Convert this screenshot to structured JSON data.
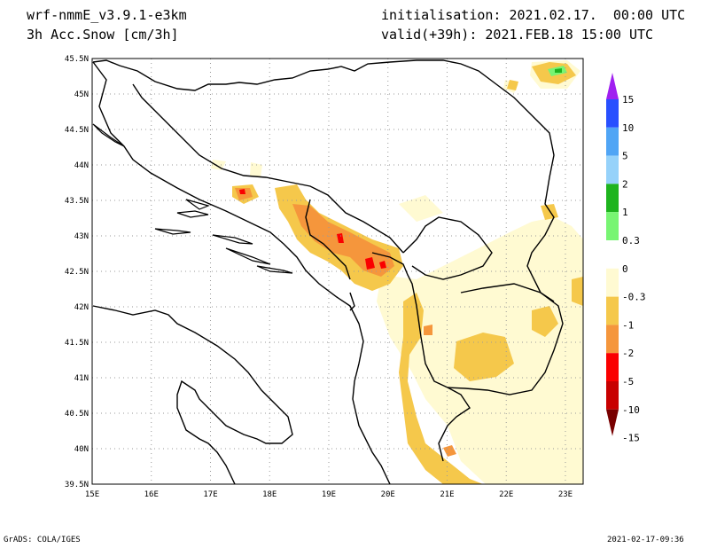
{
  "header": {
    "model": "wrf-nmmE_v3.9.1-e3km",
    "field": "3h Acc.Snow [cm/3h]",
    "initialisation": "initialisation: 2021.02.17.  00:00 UTC",
    "valid": "valid(+39h): 2021.FEB.18 15:00 UTC"
  },
  "map": {
    "lon_range": [
      15,
      23.3
    ],
    "lat_range": [
      39.5,
      45.5
    ],
    "lon_ticks": [
      "15E",
      "16E",
      "17E",
      "18E",
      "19E",
      "20E",
      "21E",
      "22E",
      "23E"
    ],
    "lat_ticks": [
      "39.5N",
      "40N",
      "40.5N",
      "41N",
      "41.5N",
      "42N",
      "42.5N",
      "43N",
      "43.5N",
      "44N",
      "44.5N",
      "45N",
      "45.5N"
    ],
    "grid": true
  },
  "colorbar": {
    "labels": [
      "15",
      "10",
      "5",
      "2",
      "1",
      "0.3",
      "0",
      "-0.3",
      "-1",
      "-2",
      "-5",
      "-10",
      "-15"
    ],
    "colors": [
      "#a020f0",
      "#2850ff",
      "#50a5f5",
      "#96d2fa",
      "#1eb41e",
      "#78f573",
      "#ffffff",
      "#fffad2",
      "#f5c84b",
      "#f5963c",
      "#fa0000",
      "#c80000",
      "#780000"
    ]
  },
  "footer": {
    "left": "GrADS: COLA/IGES",
    "right": "2021-02-17-09:36"
  }
}
